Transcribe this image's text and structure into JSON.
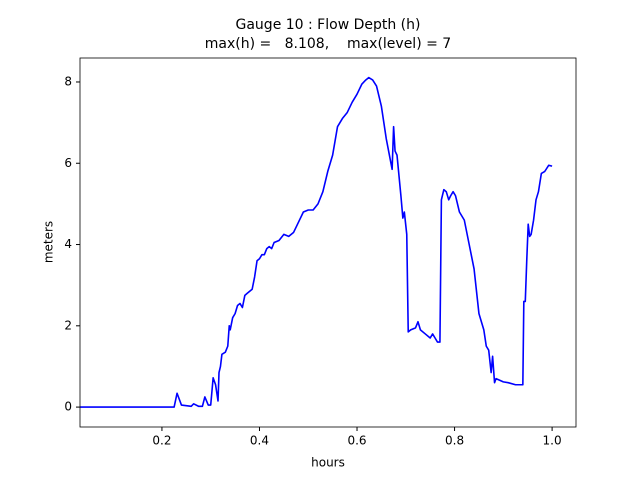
{
  "chart_data": {
    "type": "line",
    "title": [
      "Gauge 10 : Flow Depth (h)",
      "max(h) =   8.108,    max(level) = 7"
    ],
    "xlabel": "hours",
    "ylabel": "meters",
    "xlim": [
      0.032,
      1.049
    ],
    "ylim": [
      -0.49,
      8.59
    ],
    "xticks": [
      0.2,
      0.4,
      0.6,
      0.8,
      {
        "value": 1,
        "label": "1.0"
      }
    ],
    "yticks": [
      0,
      2,
      4,
      6,
      8
    ],
    "grid": false,
    "series": [
      {
        "color": "#0000ff",
        "x": [
          0.032,
          0.225,
          0.231,
          0.24,
          0.26,
          0.265,
          0.275,
          0.283,
          0.288,
          0.295,
          0.3,
          0.305,
          0.31,
          0.315,
          0.317,
          0.32,
          0.323,
          0.33,
          0.335,
          0.338,
          0.34,
          0.345,
          0.35,
          0.355,
          0.36,
          0.365,
          0.37,
          0.375,
          0.38,
          0.385,
          0.39,
          0.395,
          0.4,
          0.405,
          0.41,
          0.415,
          0.42,
          0.425,
          0.43,
          0.44,
          0.45,
          0.46,
          0.47,
          0.48,
          0.49,
          0.5,
          0.51,
          0.52,
          0.53,
          0.54,
          0.55,
          0.56,
          0.57,
          0.58,
          0.59,
          0.6,
          0.61,
          0.618,
          0.624,
          0.632,
          0.64,
          0.65,
          0.66,
          0.668,
          0.672,
          0.675,
          0.678,
          0.682,
          0.69,
          0.694,
          0.697,
          0.702,
          0.705,
          0.71,
          0.72,
          0.725,
          0.73,
          0.74,
          0.75,
          0.755,
          0.76,
          0.765,
          0.77,
          0.773,
          0.778,
          0.783,
          0.788,
          0.792,
          0.797,
          0.802,
          0.81,
          0.82,
          0.83,
          0.84,
          0.85,
          0.86,
          0.865,
          0.87,
          0.875,
          0.878,
          0.882,
          0.885,
          0.9,
          0.91,
          0.925,
          0.94,
          0.942,
          0.945,
          0.948,
          0.951,
          0.954,
          0.957,
          0.962,
          0.967,
          0.972,
          0.978,
          0.985,
          0.993,
          1.0
        ],
        "values": [
          0,
          0,
          0.34,
          0.05,
          0.02,
          0.08,
          0.02,
          0.02,
          0.25,
          0.05,
          0.05,
          0.72,
          0.55,
          0.15,
          0.85,
          1.0,
          1.3,
          1.35,
          1.5,
          2.0,
          1.9,
          2.2,
          2.3,
          2.5,
          2.55,
          2.45,
          2.75,
          2.8,
          2.85,
          2.9,
          3.2,
          3.6,
          3.65,
          3.75,
          3.75,
          3.9,
          3.95,
          3.9,
          4.05,
          4.1,
          4.25,
          4.2,
          4.3,
          4.55,
          4.8,
          4.85,
          4.85,
          5.0,
          5.3,
          5.8,
          6.2,
          6.9,
          7.1,
          7.25,
          7.5,
          7.7,
          7.95,
          8.05,
          8.108,
          8.05,
          7.9,
          7.4,
          6.6,
          6.1,
          5.85,
          6.9,
          6.3,
          6.2,
          5.2,
          4.65,
          4.8,
          4.25,
          1.85,
          1.9,
          1.95,
          2.1,
          1.9,
          1.8,
          1.7,
          1.8,
          1.7,
          1.6,
          1.6,
          5.1,
          5.35,
          5.3,
          5.1,
          5.2,
          5.3,
          5.2,
          4.8,
          4.6,
          4.0,
          3.4,
          2.3,
          1.9,
          1.5,
          1.4,
          0.85,
          1.25,
          0.6,
          0.7,
          0.62,
          0.6,
          0.55,
          0.55,
          2.6,
          2.6,
          3.6,
          4.5,
          4.2,
          4.25,
          4.6,
          5.1,
          5.3,
          5.75,
          5.8,
          5.95,
          5.93
        ]
      }
    ]
  }
}
